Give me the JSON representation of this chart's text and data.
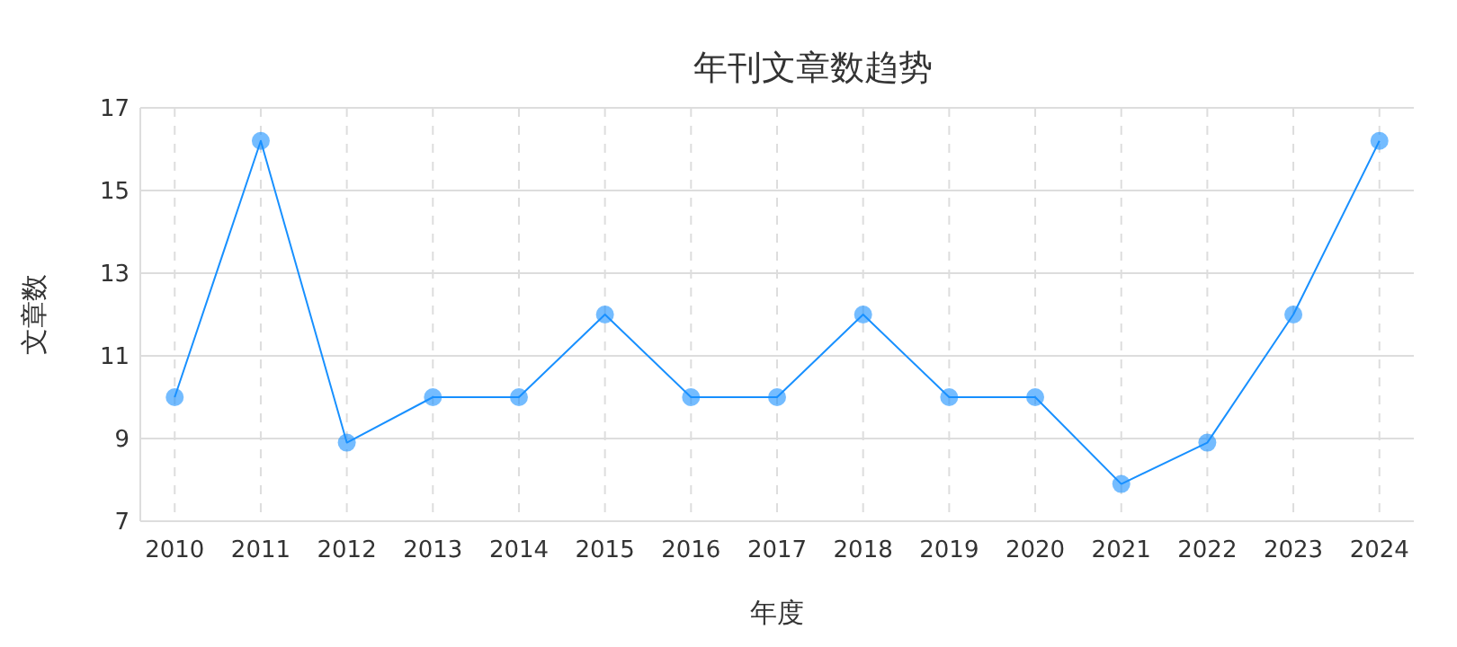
{
  "chart_data": {
    "type": "line",
    "title": "年刊文章数趋势",
    "xlabel": "年度",
    "ylabel": "文章数",
    "categories": [
      "2010",
      "2011",
      "2012",
      "2013",
      "2014",
      "2015",
      "2016",
      "2017",
      "2018",
      "2019",
      "2020",
      "2021",
      "2022",
      "2023",
      "2024"
    ],
    "series": [
      {
        "color": "#1890ff",
        "values": [
          10,
          16.2,
          8.9,
          10,
          10,
          12,
          10,
          10,
          12,
          10,
          10,
          7.9,
          8.9,
          12,
          16.2
        ]
      }
    ],
    "ylim": [
      7,
      17
    ],
    "yticks": [
      7,
      9,
      11,
      13,
      15,
      17
    ],
    "grid": true,
    "marker": "circle",
    "line_style": "solid"
  }
}
